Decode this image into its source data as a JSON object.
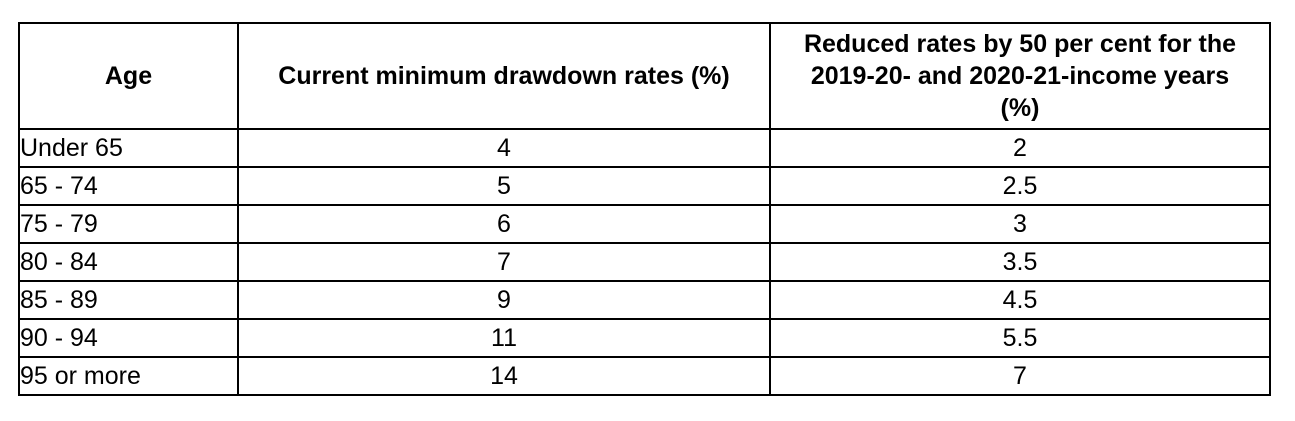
{
  "header": {
    "age": "Age",
    "current": "Current minimum drawdown rates (%)",
    "reduced_lines": [
      "Reduced rates by 50 per cent for the",
      "2019-20- and 2020-21-income years",
      "(%)"
    ]
  },
  "rows": [
    {
      "age": "Under 65",
      "current": "4",
      "reduced": "2"
    },
    {
      "age": "65 - 74",
      "current": "5",
      "reduced": "2.5"
    },
    {
      "age": "75 - 79",
      "current": "6",
      "reduced": "3"
    },
    {
      "age": "80 - 84",
      "current": "7",
      "reduced": "3.5"
    },
    {
      "age": "85 - 89",
      "current": "9",
      "reduced": "4.5"
    },
    {
      "age": "90 - 94",
      "current": "11",
      "reduced": "5.5"
    },
    {
      "age": "95 or more",
      "current": "14",
      "reduced": "7"
    }
  ],
  "colors": {
    "text": "#000000",
    "border": "#000000",
    "background": "#ffffff"
  },
  "chart_data": {
    "type": "table",
    "columns": [
      "Age",
      "Current minimum drawdown rates (%)",
      "Reduced rates by 50 per cent for the 2019-20- and 2020-21-income years (%)"
    ],
    "rows": [
      [
        "Under 65",
        4,
        2
      ],
      [
        "65 - 74",
        5,
        2.5
      ],
      [
        "75 - 79",
        6,
        3
      ],
      [
        "80 - 84",
        7,
        3.5
      ],
      [
        "85 - 89",
        9,
        4.5
      ],
      [
        "90 - 94",
        11,
        5.5
      ],
      [
        "95 or more",
        14,
        7
      ]
    ]
  }
}
